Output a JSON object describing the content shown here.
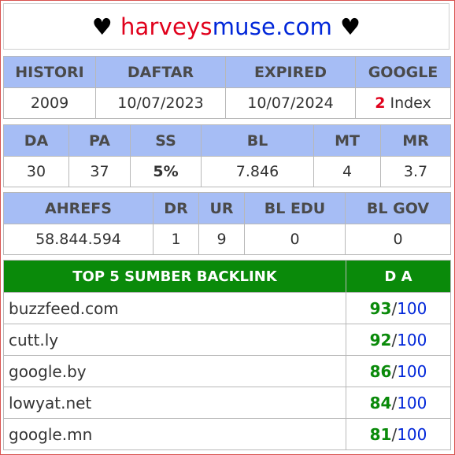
{
  "header": {
    "suit_left": "♥",
    "domain_part1": "harveys",
    "domain_part2": "muse.com",
    "suit_right": "♥"
  },
  "table1": {
    "headers": [
      "HISTORI",
      "DAFTAR",
      "EXPIRED",
      "GOOGLE"
    ],
    "values": {
      "histori": "2009",
      "daftar": "10/07/2023",
      "expired": "10/07/2024",
      "google_count": "2",
      "google_label": " Index"
    }
  },
  "table2": {
    "headers": [
      "DA",
      "PA",
      "SS",
      "BL",
      "MT",
      "MR"
    ],
    "values": [
      "30",
      "37",
      "5%",
      "7.846",
      "4",
      "3.7"
    ]
  },
  "table3": {
    "headers": [
      "AHREFS",
      "DR",
      "UR",
      "BL EDU",
      "BL GOV"
    ],
    "values": [
      "58.844.594",
      "1",
      "9",
      "0",
      "0"
    ]
  },
  "backlinks": {
    "title": "TOP 5 SUMBER BACKLINK",
    "da_header": "D A",
    "separator": "/",
    "rows": [
      {
        "site": "buzzfeed.com",
        "da": "93",
        "max": "100"
      },
      {
        "site": "cutt.ly",
        "da": "92",
        "max": "100"
      },
      {
        "site": "google.by",
        "da": "86",
        "max": "100"
      },
      {
        "site": "lowyat.net",
        "da": "84",
        "max": "100"
      },
      {
        "site": "google.mn",
        "da": "81",
        "max": "100"
      }
    ]
  },
  "colors": {
    "header_bg": "#a6bdf5",
    "green": "#0a8a0a",
    "red": "#e0001b",
    "blue": "#0026d9",
    "border": "#d9534f"
  }
}
